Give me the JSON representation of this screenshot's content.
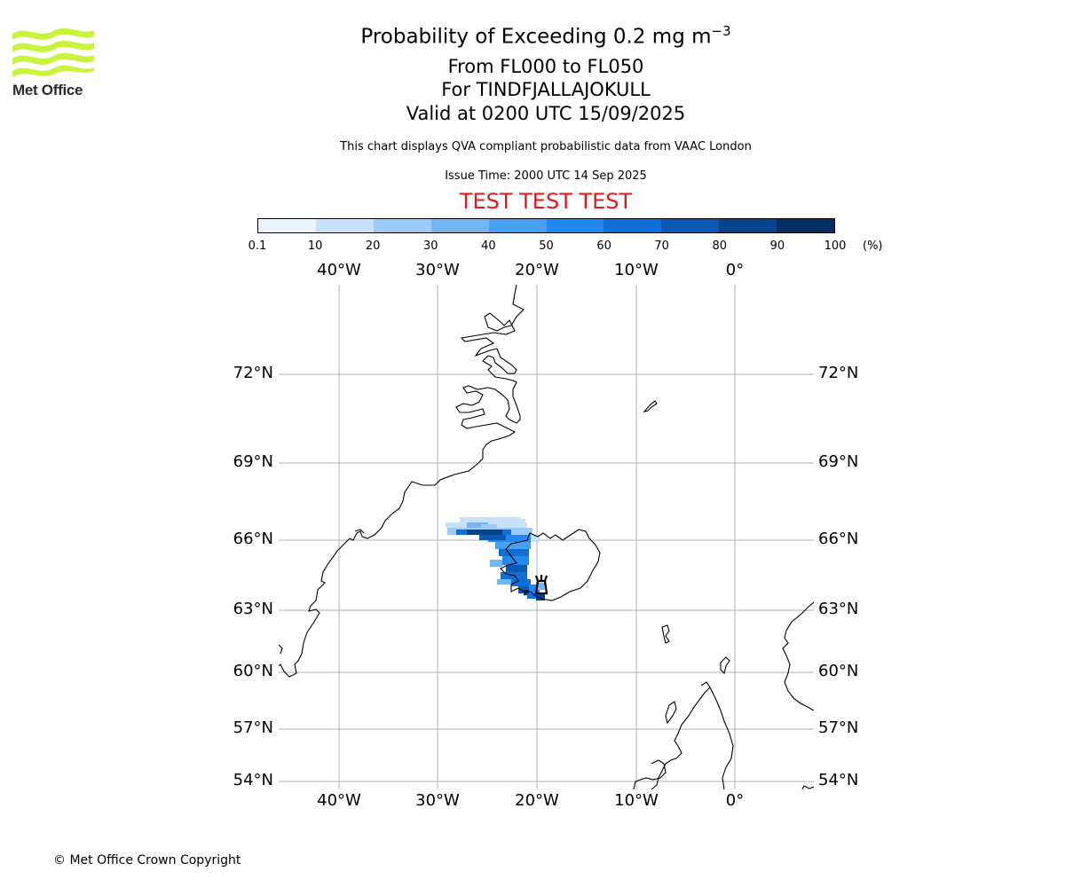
{
  "logo": {
    "text": "Met Office",
    "name": "met-office-logo"
  },
  "title": {
    "main": "Probability of Exceeding 0.2 mg m",
    "main_sup": "−3",
    "range": "From FL000 to FL050",
    "volcano": "For TINDFJALLAJOKULL",
    "valid": "Valid at 0200 UTC 15/09/2025"
  },
  "description": "This chart displays QVA compliant probabilistic data from VAAC London",
  "issue_time": "Issue Time: 2000 UTC 14 Sep 2025",
  "test_banner": "TEST TEST TEST",
  "colorbar": {
    "ticks": [
      "0.1",
      "10",
      "20",
      "30",
      "40",
      "50",
      "60",
      "70",
      "80",
      "90",
      "100"
    ],
    "unit": "(%)",
    "colors": [
      "#eaf4ff",
      "#c6e1fc",
      "#9ccbf9",
      "#72b6f6",
      "#48a0f2",
      "#2288ee",
      "#0f6fd6",
      "#0859b2",
      "#05448c",
      "#032f63"
    ]
  },
  "axes": {
    "lon_labels": [
      "40°W",
      "30°W",
      "20°W",
      "10°W",
      "0°"
    ],
    "lat_labels": [
      "72°N",
      "69°N",
      "66°N",
      "63°N",
      "60°N",
      "57°N",
      "54°N"
    ]
  },
  "map": {
    "volcano_marker": "volcano-icon",
    "ash_cloud": "probability field over south-west Iceland and the Denmark Strait"
  },
  "copyright": "© Met Office Crown Copyright"
}
